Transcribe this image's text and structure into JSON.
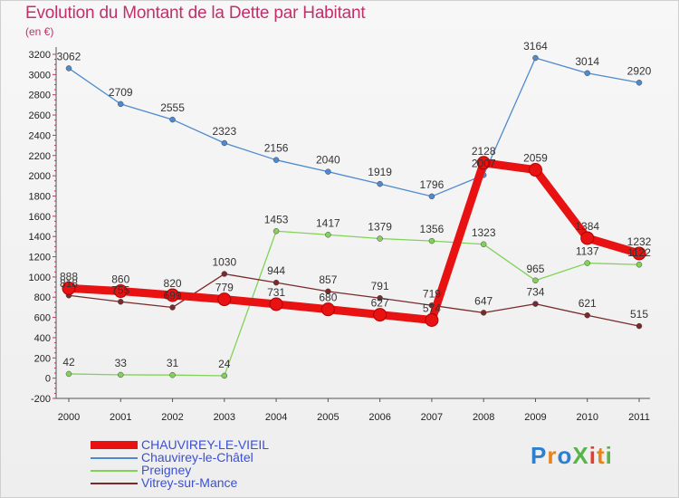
{
  "title": "Evolution du Montant de la Dette par Habitant",
  "unit_label": "(en €)",
  "logo_text": "ProXiti",
  "chart_data": {
    "type": "line",
    "categories": [
      "2000",
      "2001",
      "2002",
      "2003",
      "2004",
      "2005",
      "2006",
      "2007",
      "2008",
      "2009",
      "2010",
      "2011"
    ],
    "y_ticks": [
      -200,
      0,
      200,
      400,
      600,
      800,
      1000,
      1200,
      1400,
      1600,
      1800,
      2000,
      2200,
      2400,
      2600,
      2800,
      3000,
      3200
    ],
    "ylim": [
      -200,
      3200
    ],
    "grid": false,
    "legend_position": "bottom-left",
    "series": [
      {
        "name": "Chauvirey-le-Châtel",
        "color": "#4e8ad0",
        "values": [
          3062,
          2709,
          2555,
          2323,
          2156,
          2040,
          1919,
          1796,
          2007,
          3164,
          3014,
          2920
        ],
        "labels": [
          "3062",
          "2709",
          "2555",
          "2323",
          "2156",
          "2040",
          "1919",
          "1796",
          "2007",
          "3164",
          "3014",
          "2920"
        ]
      },
      {
        "name": "Preigney",
        "color": "#82d25a",
        "values": [
          42,
          33,
          31,
          24,
          1453,
          1417,
          1379,
          1356,
          1323,
          965,
          1137,
          1122
        ],
        "labels": [
          "42",
          "33",
          "31",
          "24",
          "1453",
          "1417",
          "1379",
          "1356",
          "1323",
          "965",
          "1137",
          "1122"
        ]
      },
      {
        "name": "Vitrey-sur-Mance",
        "color": "#7a2a2a",
        "values": [
          818,
          755,
          699,
          1030,
          944,
          857,
          791,
          719,
          647,
          734,
          621,
          515
        ],
        "labels": [
          "818",
          "755",
          "699",
          "1030",
          "944",
          "857",
          "791",
          "719",
          "647",
          "734",
          "621",
          "515"
        ]
      },
      {
        "name": "CHAUVIREY-LE-VIEIL",
        "color": "#e81212",
        "values": [
          888,
          860,
          820,
          779,
          731,
          680,
          627,
          574,
          2128,
          2059,
          1384,
          1232
        ],
        "labels": [
          "888",
          "860",
          "820",
          "779",
          "731",
          "680",
          "627",
          "574",
          "2128",
          "2059",
          "1384",
          "1232"
        ]
      }
    ],
    "legend_order": [
      3,
      0,
      1,
      2
    ]
  }
}
